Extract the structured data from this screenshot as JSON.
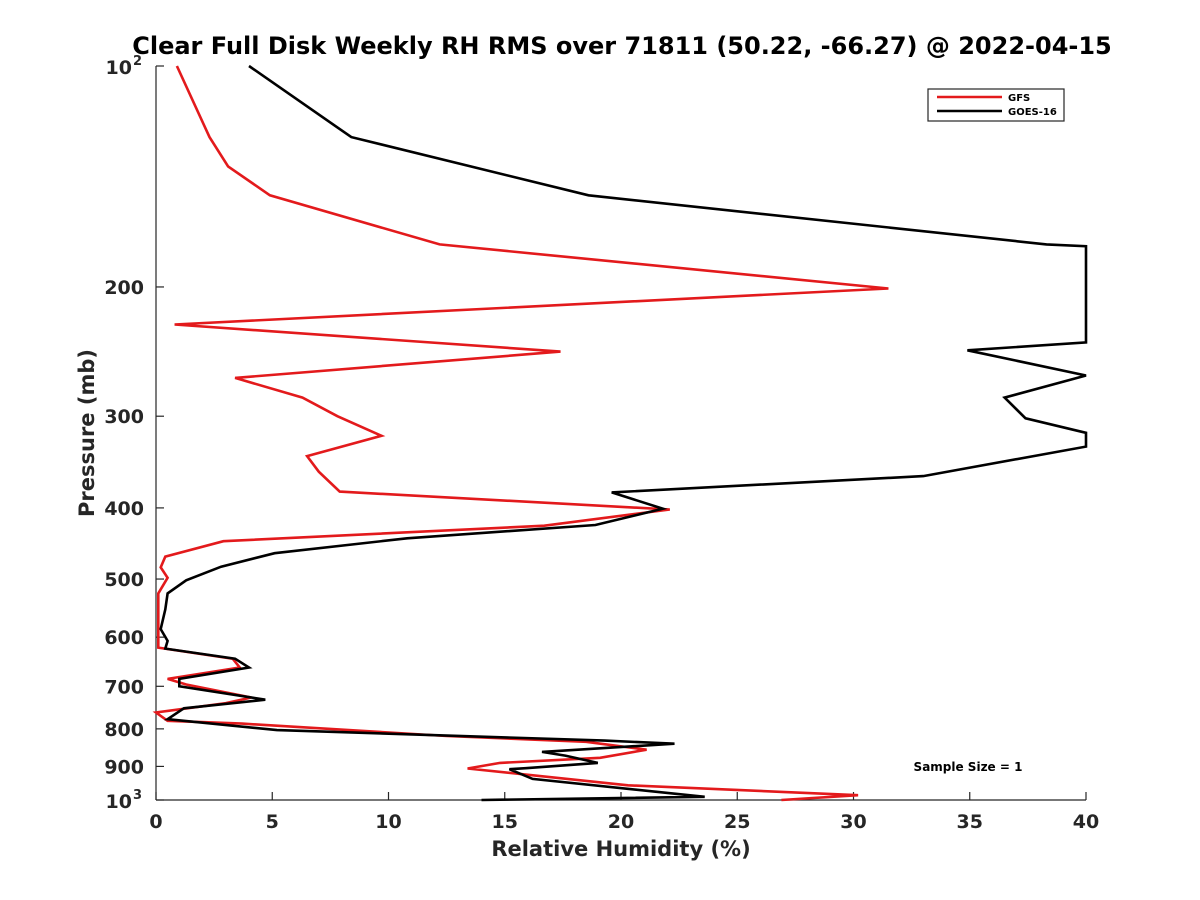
{
  "chart_data": {
    "type": "line",
    "title": "Clear Full Disk Weekly RH RMS over 71811 (50.22, -66.27) @ 2022-04-15",
    "xlabel": "Relative Humidity (%)",
    "ylabel": "Pressure (mb)",
    "xlim": [
      0,
      40
    ],
    "ylim": [
      100,
      1000
    ],
    "y_scale": "log",
    "y_reversed": true,
    "x_ticks": [
      0,
      5,
      10,
      15,
      20,
      25,
      30,
      35,
      40
    ],
    "x_tick_labels": [
      "0",
      "5",
      "10",
      "15",
      "20",
      "25",
      "30",
      "35",
      "40"
    ],
    "y_ticks": [
      100,
      200,
      300,
      400,
      500,
      600,
      700,
      800,
      900,
      1000
    ],
    "y_tick_labels": [
      {
        "base": "10",
        "sup": "2"
      },
      {
        "base": "200"
      },
      {
        "base": "300"
      },
      {
        "base": "400"
      },
      {
        "base": "500"
      },
      {
        "base": "600"
      },
      {
        "base": "700"
      },
      {
        "base": "800"
      },
      {
        "base": "900"
      },
      {
        "base": "10",
        "sup": "3"
      }
    ],
    "grid": false,
    "legend_position": "top-right",
    "annotation": "Sample Size = 1",
    "series": [
      {
        "name": "GFS",
        "color": "#e31a1c",
        "points": [
          [
            0.9,
            100
          ],
          [
            2.3,
            125
          ],
          [
            3.1,
            137
          ],
          [
            4.9,
            150
          ],
          [
            12.2,
            175
          ],
          [
            31.5,
            201
          ],
          [
            0.8,
            225
          ],
          [
            17.4,
            245
          ],
          [
            3.4,
            266
          ],
          [
            6.3,
            283
          ],
          [
            7.8,
            300
          ],
          [
            9.7,
            319
          ],
          [
            6.5,
            340
          ],
          [
            7.0,
            357
          ],
          [
            7.9,
            380
          ],
          [
            22.1,
            402
          ],
          [
            16.7,
            423
          ],
          [
            2.9,
            444
          ],
          [
            0.4,
            466
          ],
          [
            0.2,
            482
          ],
          [
            0.5,
            498
          ],
          [
            0.1,
            523
          ],
          [
            0.1,
            620
          ],
          [
            3.3,
            642
          ],
          [
            3.6,
            660
          ],
          [
            0.5,
            684
          ],
          [
            1.3,
            696
          ],
          [
            4.1,
            725
          ],
          [
            3.0,
            738
          ],
          [
            0.0,
            760
          ],
          [
            0.5,
            780
          ],
          [
            3.7,
            787
          ],
          [
            12.5,
            818
          ],
          [
            18.5,
            833
          ],
          [
            21.1,
            854
          ],
          [
            19.1,
            876
          ],
          [
            14.8,
            890
          ],
          [
            13.4,
            906
          ],
          [
            20.3,
            955
          ],
          [
            30.2,
            985
          ],
          [
            26.9,
            1000
          ]
        ]
      },
      {
        "name": "GOES-16",
        "color": "#000000",
        "points": [
          [
            4.0,
            100
          ],
          [
            8.4,
            125
          ],
          [
            18.6,
            150
          ],
          [
            38.3,
            175
          ],
          [
            40.0,
            176
          ],
          [
            40.0,
            238
          ],
          [
            34.9,
            244
          ],
          [
            40.0,
            264
          ],
          [
            36.5,
            283
          ],
          [
            37.4,
            302
          ],
          [
            40.0,
            316
          ],
          [
            40.0,
            330
          ],
          [
            33.0,
            362
          ],
          [
            19.6,
            381
          ],
          [
            21.8,
            401
          ],
          [
            18.9,
            422
          ],
          [
            10.8,
            440
          ],
          [
            5.1,
            461
          ],
          [
            2.8,
            481
          ],
          [
            1.3,
            502
          ],
          [
            0.5,
            523
          ],
          [
            0.4,
            550
          ],
          [
            0.2,
            585
          ],
          [
            0.5,
            607
          ],
          [
            0.4,
            622
          ],
          [
            3.4,
            642
          ],
          [
            4.0,
            660
          ],
          [
            1.0,
            684
          ],
          [
            1.0,
            700
          ],
          [
            4.7,
            730
          ],
          [
            1.2,
            750
          ],
          [
            0.5,
            776
          ],
          [
            5.2,
            803
          ],
          [
            19.3,
            830
          ],
          [
            22.3,
            838
          ],
          [
            16.6,
            860
          ],
          [
            17.6,
            870
          ],
          [
            19.0,
            890
          ],
          [
            15.9,
            905
          ],
          [
            15.2,
            908
          ],
          [
            16.2,
            936
          ],
          [
            23.6,
            990
          ],
          [
            14.0,
            1000
          ]
        ]
      }
    ]
  }
}
